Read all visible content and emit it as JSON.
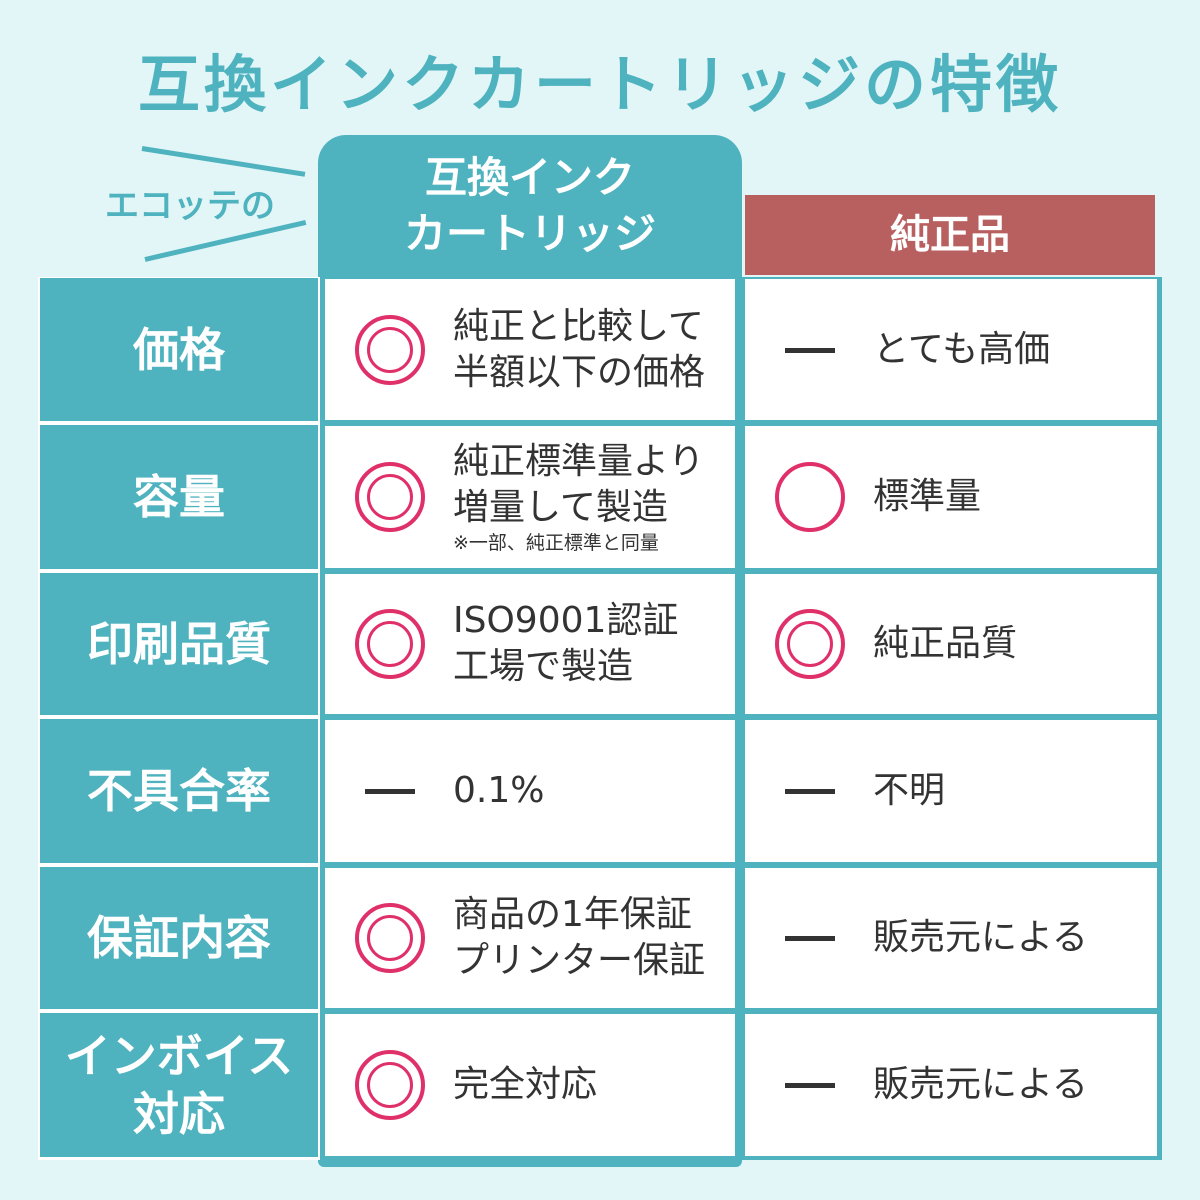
{
  "title": "互換インクカートリッジの特徴",
  "brand_label": "エコッテの",
  "headers": {
    "compat": [
      "互換インク",
      "カートリッジ"
    ],
    "genuine": "純正品"
  },
  "colors": {
    "teal": "#4fb3bf",
    "genuine": "#b86060",
    "mark": "#e0306a",
    "background": "#e2f6f8"
  },
  "rows": [
    {
      "label": [
        "価格"
      ],
      "compat": {
        "mark": "double-circle-icon",
        "text": [
          "純正と比較して",
          "半額以下の価格"
        ]
      },
      "genuine": {
        "mark": "dash-icon",
        "text": [
          "とても高価"
        ]
      }
    },
    {
      "label": [
        "容量"
      ],
      "compat": {
        "mark": "double-circle-icon",
        "text": [
          "純正標準量より",
          "増量して製造"
        ],
        "note": "※一部、純正標準と同量"
      },
      "genuine": {
        "mark": "circle-icon",
        "text": [
          "標準量"
        ]
      }
    },
    {
      "label": [
        "印刷品質"
      ],
      "compat": {
        "mark": "double-circle-icon",
        "text": [
          "ISO9001認証",
          "工場で製造"
        ]
      },
      "genuine": {
        "mark": "double-circle-icon",
        "text": [
          "純正品質"
        ]
      }
    },
    {
      "label": [
        "不具合率"
      ],
      "compat": {
        "mark": "dash-icon",
        "text": [
          "0.1%"
        ]
      },
      "genuine": {
        "mark": "dash-icon",
        "text": [
          "不明"
        ]
      }
    },
    {
      "label": [
        "保証内容"
      ],
      "compat": {
        "mark": "double-circle-icon",
        "text": [
          "商品の1年保証",
          "プリンター保証"
        ]
      },
      "genuine": {
        "mark": "dash-icon",
        "text": [
          "販売元による"
        ]
      }
    },
    {
      "label": [
        "インボイス",
        "対応"
      ],
      "compat": {
        "mark": "double-circle-icon",
        "text": [
          "完全対応"
        ]
      },
      "genuine": {
        "mark": "dash-icon",
        "text": [
          "販売元による"
        ]
      }
    }
  ]
}
